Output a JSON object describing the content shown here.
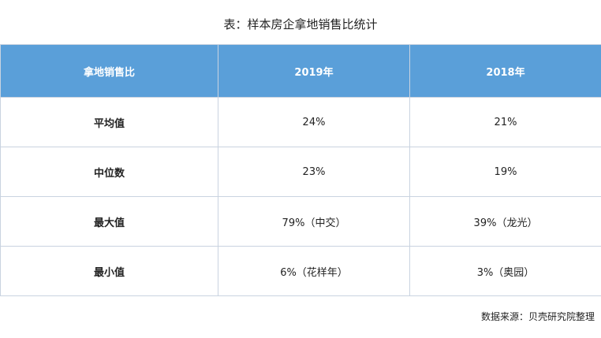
{
  "title": "表：样本房企拿地销售比统计",
  "table": {
    "headers": [
      "拿地销售比",
      "2019年",
      "2018年"
    ],
    "rows": [
      {
        "label": "平均值",
        "y2019": "24%",
        "y2018": "21%"
      },
      {
        "label": "中位数",
        "y2019": "23%",
        "y2018": "19%"
      },
      {
        "label": "最大值",
        "y2019": "79%（中交）",
        "y2018": "39%（龙光）"
      },
      {
        "label": "最小值",
        "y2019": "6%（花样年）",
        "y2018": "3%（奥园）"
      }
    ]
  },
  "source": "数据来源：贝壳研究院整理",
  "colors": {
    "header_bg": "#5a9fd9",
    "header_text": "#ffffff",
    "border": "#c9d3e0"
  }
}
